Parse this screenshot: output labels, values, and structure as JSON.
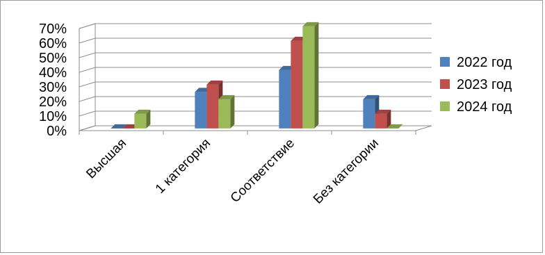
{
  "chart_data": {
    "type": "bar",
    "style": "3d-clustered-column",
    "categories": [
      "Высшая",
      "1 категория",
      "Соответствие",
      "Без категории"
    ],
    "series": [
      {
        "name": "2022 год",
        "color": "#4f81bd",
        "values": [
          0,
          25,
          40,
          20
        ]
      },
      {
        "name": "2023 год",
        "color": "#c0504d",
        "values": [
          0,
          30,
          60,
          10
        ]
      },
      {
        "name": "2024 год",
        "color": "#9bbb59",
        "values": [
          10,
          20,
          70,
          0
        ]
      }
    ],
    "y_ticks": [
      "0%",
      "10%",
      "20%",
      "30%",
      "40%",
      "50%",
      "60%",
      "70%"
    ],
    "ylim": [
      0,
      70
    ],
    "y_unit": "%",
    "grid": true,
    "legend_position": "right"
  }
}
